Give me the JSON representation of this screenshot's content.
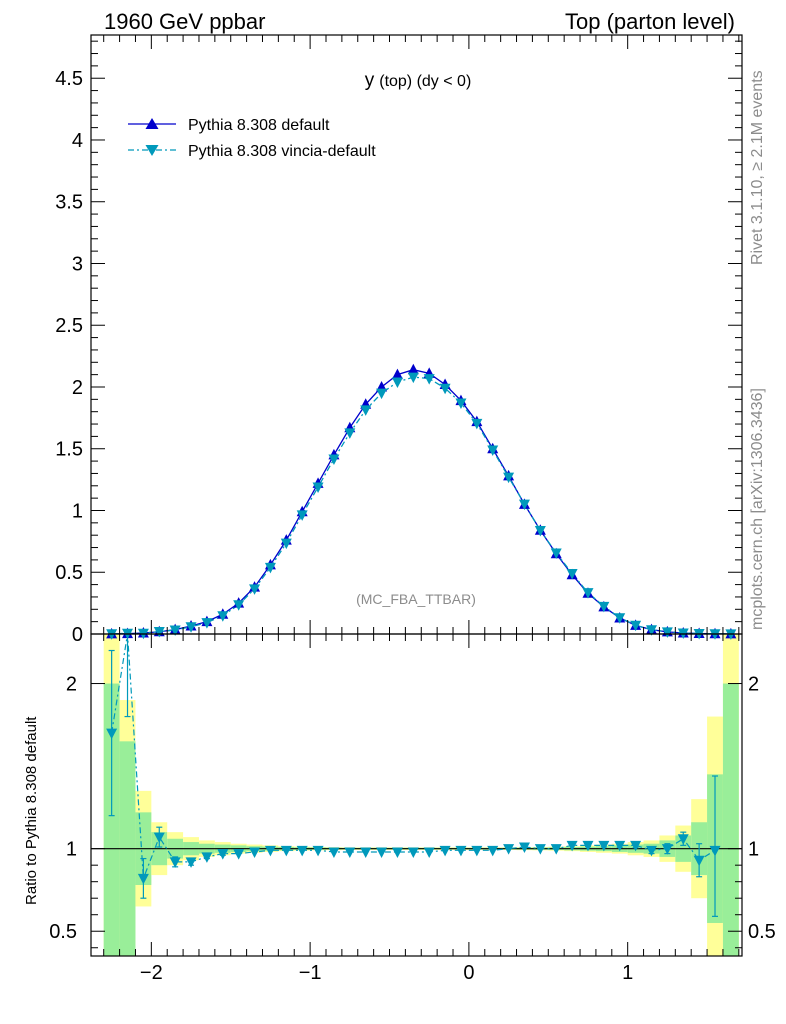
{
  "header": {
    "left": "1960 GeV ppbar",
    "right": "Top (parton level)"
  },
  "side": {
    "rivet": "Rivet 3.1.10, ≥ 2.1M events",
    "mcplots": "mcplots.cern.ch [arXiv:1306.3436]"
  },
  "main": {
    "title_main": "y",
    "title_rest": "(top) (dy < 0)",
    "watermark": "(MC_FBA_TTBAR)"
  },
  "ratio": {
    "ylabel": "Ratio to Pythia 8.308 default"
  },
  "colors": {
    "default": "#0000cc",
    "vincia": "#0099bb",
    "band_inner": "#99ee99",
    "band_outer": "#ffff99"
  },
  "chart_data": [
    {
      "type": "line",
      "xlim": [
        -2.38,
        1.72
      ],
      "ylim": [
        0,
        4.85
      ],
      "yticks": [
        0,
        0.5,
        1,
        1.5,
        2,
        2.5,
        3,
        3.5,
        4,
        4.5
      ],
      "ytick_labels": [
        "0",
        "0.5",
        "1",
        "1.5",
        "2",
        "2.5",
        "3",
        "3.5",
        "4",
        "4.5"
      ],
      "legend_position": "top-left",
      "x": [
        -2.25,
        -2.15,
        -2.05,
        -1.95,
        -1.85,
        -1.75,
        -1.65,
        -1.55,
        -1.45,
        -1.35,
        -1.25,
        -1.15,
        -1.05,
        -0.95,
        -0.85,
        -0.75,
        -0.65,
        -0.55,
        -0.45,
        -0.35,
        -0.25,
        -0.15,
        -0.05,
        0.05,
        0.15,
        0.25,
        0.35,
        0.45,
        0.55,
        0.65,
        0.75,
        0.85,
        0.95,
        1.05,
        1.15,
        1.25,
        1.35,
        1.45,
        1.55,
        1.65
      ],
      "series": [
        {
          "name": "Pythia 8.308 default",
          "marker": "triangle-up",
          "values": [
            0.001,
            0.003,
            0.008,
            0.018,
            0.035,
            0.065,
            0.1,
            0.16,
            0.25,
            0.38,
            0.56,
            0.76,
            0.99,
            1.22,
            1.45,
            1.67,
            1.86,
            2.0,
            2.1,
            2.14,
            2.11,
            2.02,
            1.89,
            1.72,
            1.5,
            1.28,
            1.05,
            0.84,
            0.65,
            0.48,
            0.33,
            0.22,
            0.13,
            0.07,
            0.035,
            0.017,
            0.008,
            0.004,
            0.002,
            0.001
          ]
        },
        {
          "name": "Pythia 8.308 vincia-default",
          "marker": "triangle-down",
          "values": [
            0.0017,
            0.006,
            0.0065,
            0.02,
            0.032,
            0.059,
            0.092,
            0.148,
            0.237,
            0.365,
            0.539,
            0.736,
            0.965,
            1.19,
            1.417,
            1.628,
            1.815,
            1.95,
            2.04,
            2.08,
            2.068,
            1.99,
            1.87,
            1.705,
            1.49,
            1.27,
            1.052,
            0.838,
            0.656,
            0.49,
            0.335,
            0.224,
            0.132,
            0.071,
            0.0347,
            0.0171,
            0.0082,
            0.0038,
            0.002,
            0.001
          ]
        }
      ],
      "annotation": "(MC_FBA_TTBAR)"
    },
    {
      "type": "line",
      "ylabel": "Ratio to Pythia 8.308 default",
      "xlim": [
        -2.38,
        1.72
      ],
      "ylim": [
        0.35,
        2.3
      ],
      "xticks": [
        -2,
        -1,
        0,
        1
      ],
      "xtick_labels": [
        "−2",
        "−1",
        "0",
        "1"
      ],
      "yticks": [
        0.5,
        1,
        2
      ],
      "ytick_labels": [
        "0.5",
        "1",
        "2"
      ],
      "x": [
        -2.25,
        -2.15,
        -2.05,
        -1.95,
        -1.85,
        -1.75,
        -1.65,
        -1.55,
        -1.45,
        -1.35,
        -1.25,
        -1.15,
        -1.05,
        -0.95,
        -0.85,
        -0.75,
        -0.65,
        -0.55,
        -0.45,
        -0.35,
        -0.25,
        -0.15,
        -0.05,
        0.05,
        0.15,
        0.25,
        0.35,
        0.45,
        0.55,
        0.65,
        0.75,
        0.85,
        0.95,
        1.05,
        1.15,
        1.25,
        1.35,
        1.45,
        1.55,
        1.65
      ],
      "series": [
        {
          "name": "Pythia 8.308 vincia-default",
          "values": [
            1.7,
            3.0,
            0.82,
            1.07,
            0.92,
            0.92,
            0.95,
            0.97,
            0.97,
            0.98,
            0.99,
            0.99,
            0.99,
            0.99,
            0.98,
            0.98,
            0.98,
            0.98,
            0.98,
            0.98,
            0.98,
            0.99,
            0.99,
            0.99,
            0.99,
            1.0,
            1.01,
            1.0,
            1.0,
            1.02,
            1.02,
            1.02,
            1.02,
            1.02,
            0.99,
            1.0,
            1.06,
            0.93,
            0.99,
            null
          ],
          "err_low": [
            0.5,
            1.2,
            0.12,
            0.06,
            0.03,
            0.02,
            0.01,
            0.01,
            0.005,
            0.005,
            0.005,
            0.005,
            0.004,
            0.004,
            0.004,
            0.004,
            0.004,
            0.004,
            0.004,
            0.004,
            0.004,
            0.004,
            0.004,
            0.004,
            0.004,
            0.004,
            0.005,
            0.005,
            0.005,
            0.006,
            0.008,
            0.01,
            0.012,
            0.015,
            0.02,
            0.03,
            0.04,
            0.1,
            0.4,
            0
          ],
          "err_high": [
            0.5,
            1.2,
            0.12,
            0.06,
            0.03,
            0.02,
            0.01,
            0.01,
            0.005,
            0.005,
            0.005,
            0.005,
            0.004,
            0.004,
            0.004,
            0.004,
            0.004,
            0.004,
            0.004,
            0.004,
            0.004,
            0.004,
            0.004,
            0.004,
            0.004,
            0.004,
            0.005,
            0.005,
            0.005,
            0.006,
            0.008,
            0.01,
            0.012,
            0.015,
            0.02,
            0.03,
            0.04,
            0.1,
            0.45,
            0
          ]
        }
      ],
      "band_inner_halfwidth": [
        1.0,
        0.65,
        0.22,
        0.1,
        0.06,
        0.04,
        0.03,
        0.025,
        0.02,
        0.015,
        0.012,
        0.01,
        0.008,
        0.007,
        0.006,
        0.005,
        0.005,
        0.005,
        0.005,
        0.005,
        0.005,
        0.005,
        0.005,
        0.005,
        0.005,
        0.005,
        0.006,
        0.007,
        0.008,
        0.01,
        0.012,
        0.015,
        0.02,
        0.025,
        0.03,
        0.05,
        0.08,
        0.16,
        0.45,
        1.0
      ],
      "band_outer_halfwidth": [
        1.3,
        0.9,
        0.35,
        0.16,
        0.1,
        0.07,
        0.05,
        0.04,
        0.03,
        0.025,
        0.02,
        0.015,
        0.012,
        0.01,
        0.009,
        0.008,
        0.008,
        0.008,
        0.008,
        0.008,
        0.008,
        0.008,
        0.008,
        0.008,
        0.008,
        0.008,
        0.009,
        0.01,
        0.012,
        0.015,
        0.02,
        0.025,
        0.03,
        0.04,
        0.05,
        0.08,
        0.14,
        0.3,
        0.8,
        1.3
      ],
      "reference_line": 1
    }
  ]
}
